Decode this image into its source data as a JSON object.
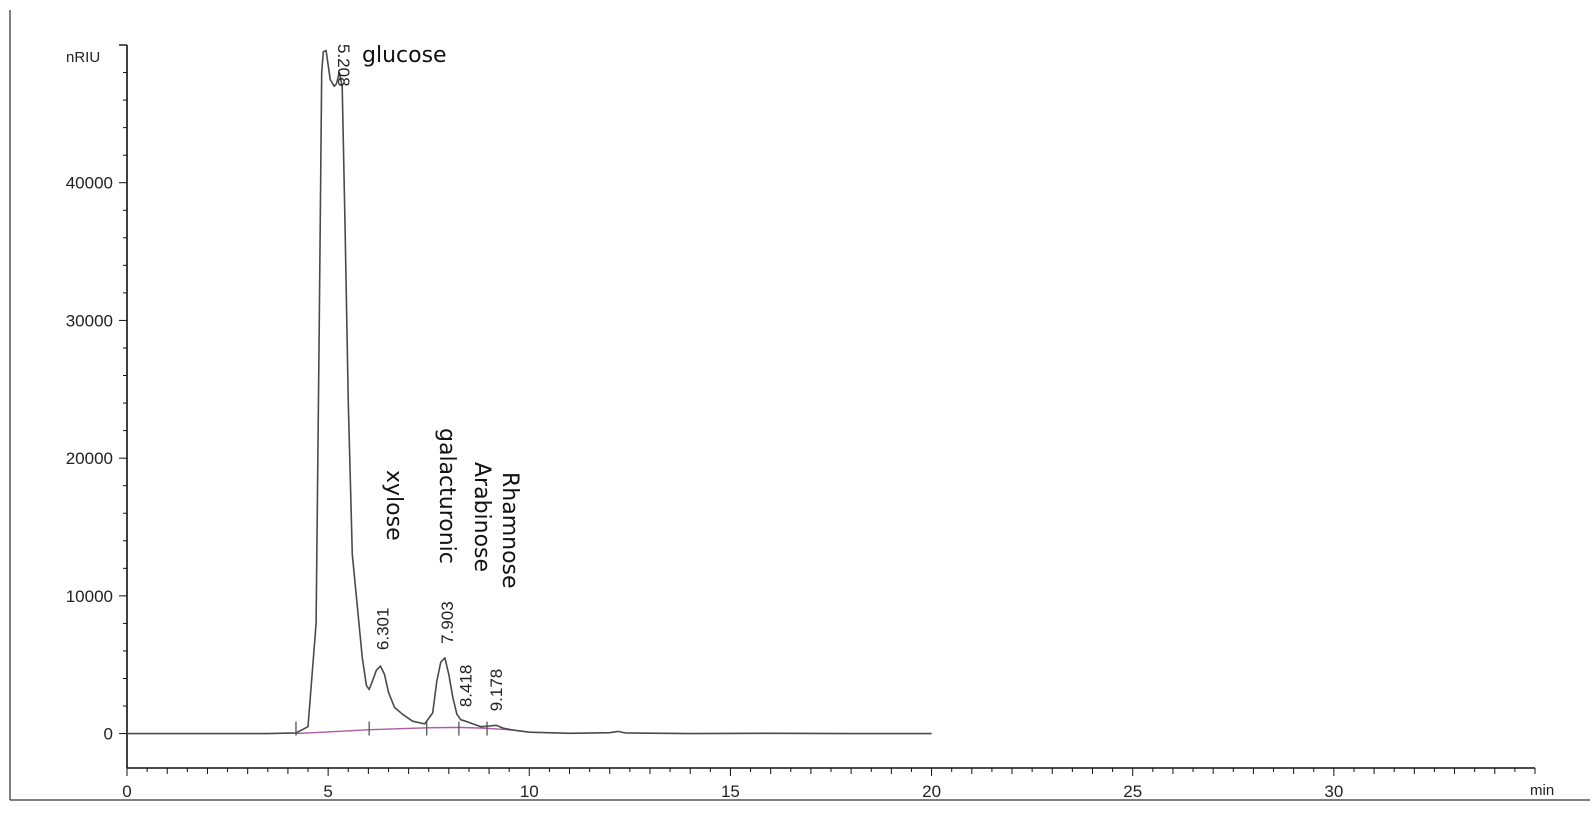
{
  "chart_data": {
    "type": "line",
    "title": "",
    "xlabel": "",
    "ylabel": "",
    "x_unit": "min",
    "y_unit": "nRIU",
    "xlim": [
      0,
      35
    ],
    "ylim": [
      -2500,
      50000
    ],
    "x_ticks": [
      0,
      5,
      10,
      15,
      20,
      25,
      30
    ],
    "y_ticks": [
      0,
      10000,
      20000,
      30000,
      40000
    ],
    "grid": false,
    "legend": "none",
    "colors": {
      "signal": "#4a4a4a",
      "baseline": "#b05aa0",
      "axis": "#111111"
    },
    "series": [
      {
        "x": [
          0,
          3.5,
          4.2,
          4.5,
          4.7,
          4.78,
          4.84,
          4.88,
          4.95,
          5.05,
          5.15,
          5.208,
          5.28,
          5.35,
          5.42,
          5.5,
          5.6,
          5.75,
          5.85,
          5.95,
          6.02,
          6.1,
          6.2,
          6.301,
          6.4,
          6.5,
          6.65,
          6.85,
          7.1,
          7.4,
          7.6,
          7.7,
          7.8,
          7.903,
          8.0,
          8.1,
          8.2,
          8.3,
          8.418,
          8.6,
          8.8,
          9.0,
          9.178,
          9.35,
          9.6,
          10,
          11,
          12,
          12.2,
          12.4,
          14,
          16,
          18,
          20
        ],
        "y": [
          0,
          0,
          50,
          500,
          8000,
          30000,
          48000,
          49500,
          49600,
          47500,
          47000,
          47200,
          48000,
          47000,
          37000,
          24000,
          13000,
          8500,
          5500,
          3500,
          3200,
          3800,
          4600,
          4900,
          4300,
          3000,
          1900,
          1400,
          900,
          700,
          1500,
          3800,
          5200,
          5500,
          4300,
          2600,
          1400,
          1000,
          900,
          700,
          500,
          550,
          600,
          400,
          250,
          100,
          20,
          60,
          160,
          40,
          0,
          20,
          0,
          0
        ]
      }
    ],
    "baseline": {
      "x": [
        4.2,
        5.0,
        6.02,
        7.45,
        8.25,
        8.95,
        9.6
      ],
      "y": [
        0,
        120,
        280,
        420,
        450,
        380,
        250
      ]
    },
    "peaks": [
      {
        "rt": "5.208",
        "x": 5.208,
        "y": 47200,
        "name": "glucose"
      },
      {
        "rt": "6.301",
        "x": 6.301,
        "y": 4900,
        "name": "xylose"
      },
      {
        "rt": "7.903",
        "x": 7.903,
        "y": 5500,
        "name": "galacturonic"
      },
      {
        "rt": "8.418",
        "x": 8.418,
        "y": 900,
        "name": "Arabinose"
      },
      {
        "rt": "9.178",
        "x": 9.178,
        "y": 600,
        "name": "Rhamnose"
      }
    ],
    "dividers": [
      4.2,
      6.02,
      7.45,
      8.25,
      8.95
    ]
  }
}
